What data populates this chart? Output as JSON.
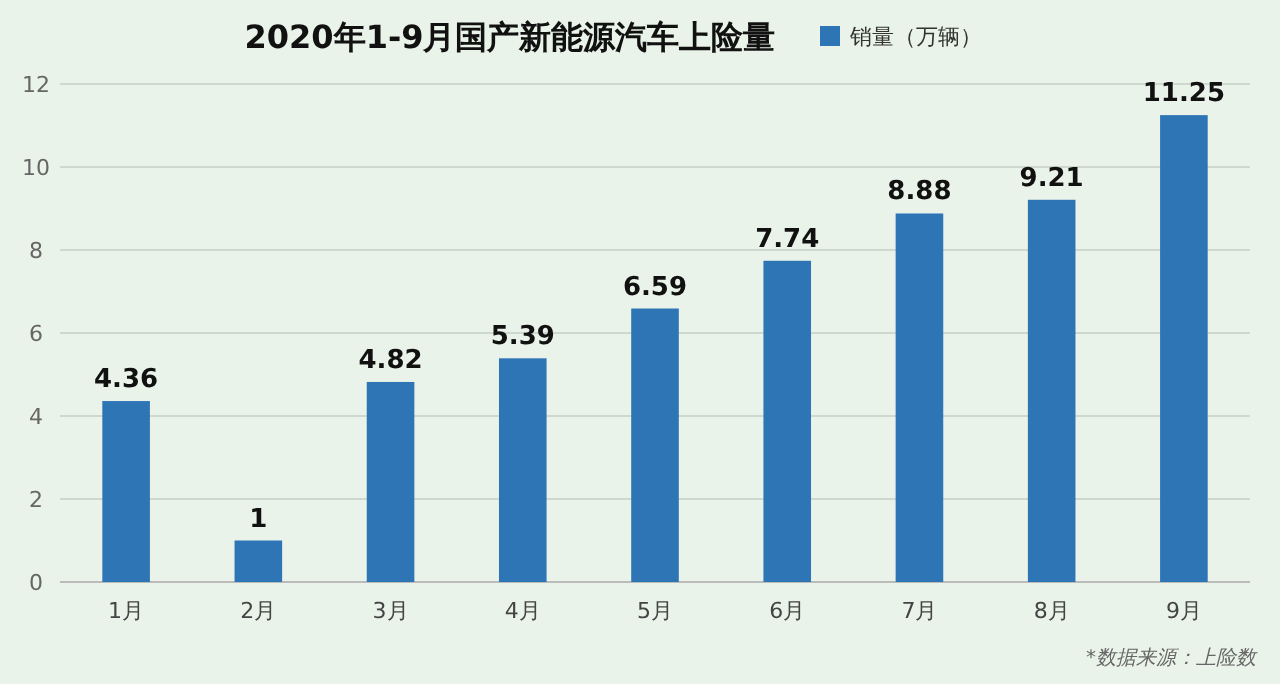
{
  "chart_data": {
    "type": "bar",
    "title": "2020年1-9月国产新能源汽车上险量",
    "categories": [
      "1月",
      "2月",
      "3月",
      "4月",
      "5月",
      "6月",
      "7月",
      "8月",
      "9月"
    ],
    "series": [
      {
        "name": "销量（万辆）",
        "color": "#2e75b6",
        "values": [
          4.36,
          1,
          4.82,
          5.39,
          6.59,
          7.74,
          8.88,
          9.21,
          11.25
        ]
      }
    ],
    "ylim": [
      0,
      12
    ],
    "yticks": [
      0,
      2,
      4,
      6,
      8,
      10,
      12
    ],
    "grid": "y",
    "legend": "top",
    "data_labels": true,
    "annotations": [
      "*数据来源：上险数"
    ]
  }
}
